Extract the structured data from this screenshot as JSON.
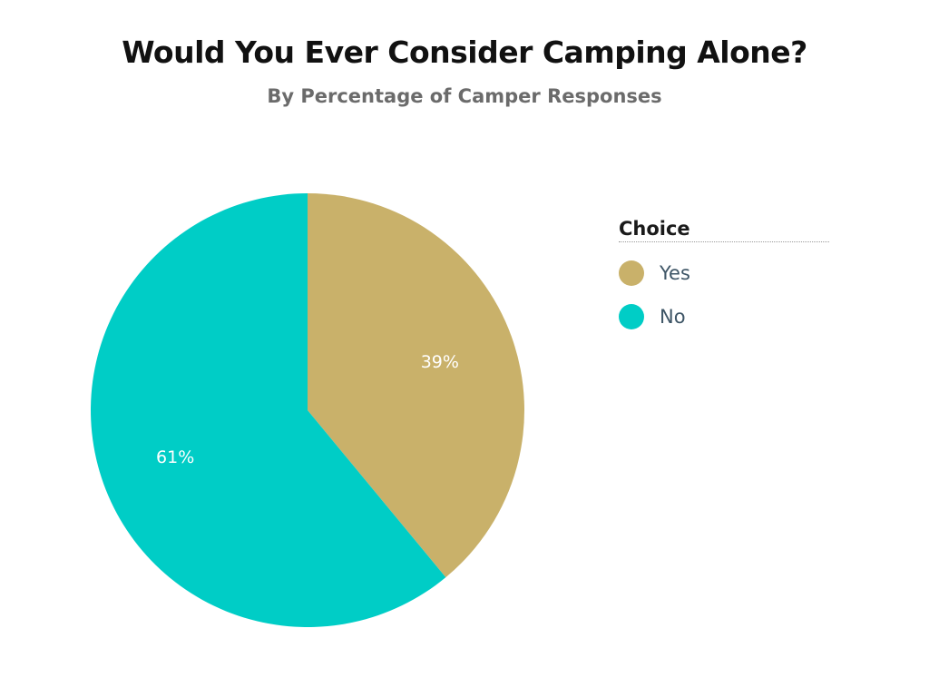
{
  "chart_data": {
    "type": "pie",
    "title": "Would You Ever Consider Camping Alone?",
    "subtitle": "By Percentage of Camper Responses",
    "legend_title": "Choice",
    "legend_position": "right",
    "slices": [
      {
        "label": "Yes",
        "value": 39,
        "display": "39%",
        "color": "#c9b16a"
      },
      {
        "label": "No",
        "value": 61,
        "display": "61%",
        "color": "#00cdc6"
      }
    ]
  }
}
